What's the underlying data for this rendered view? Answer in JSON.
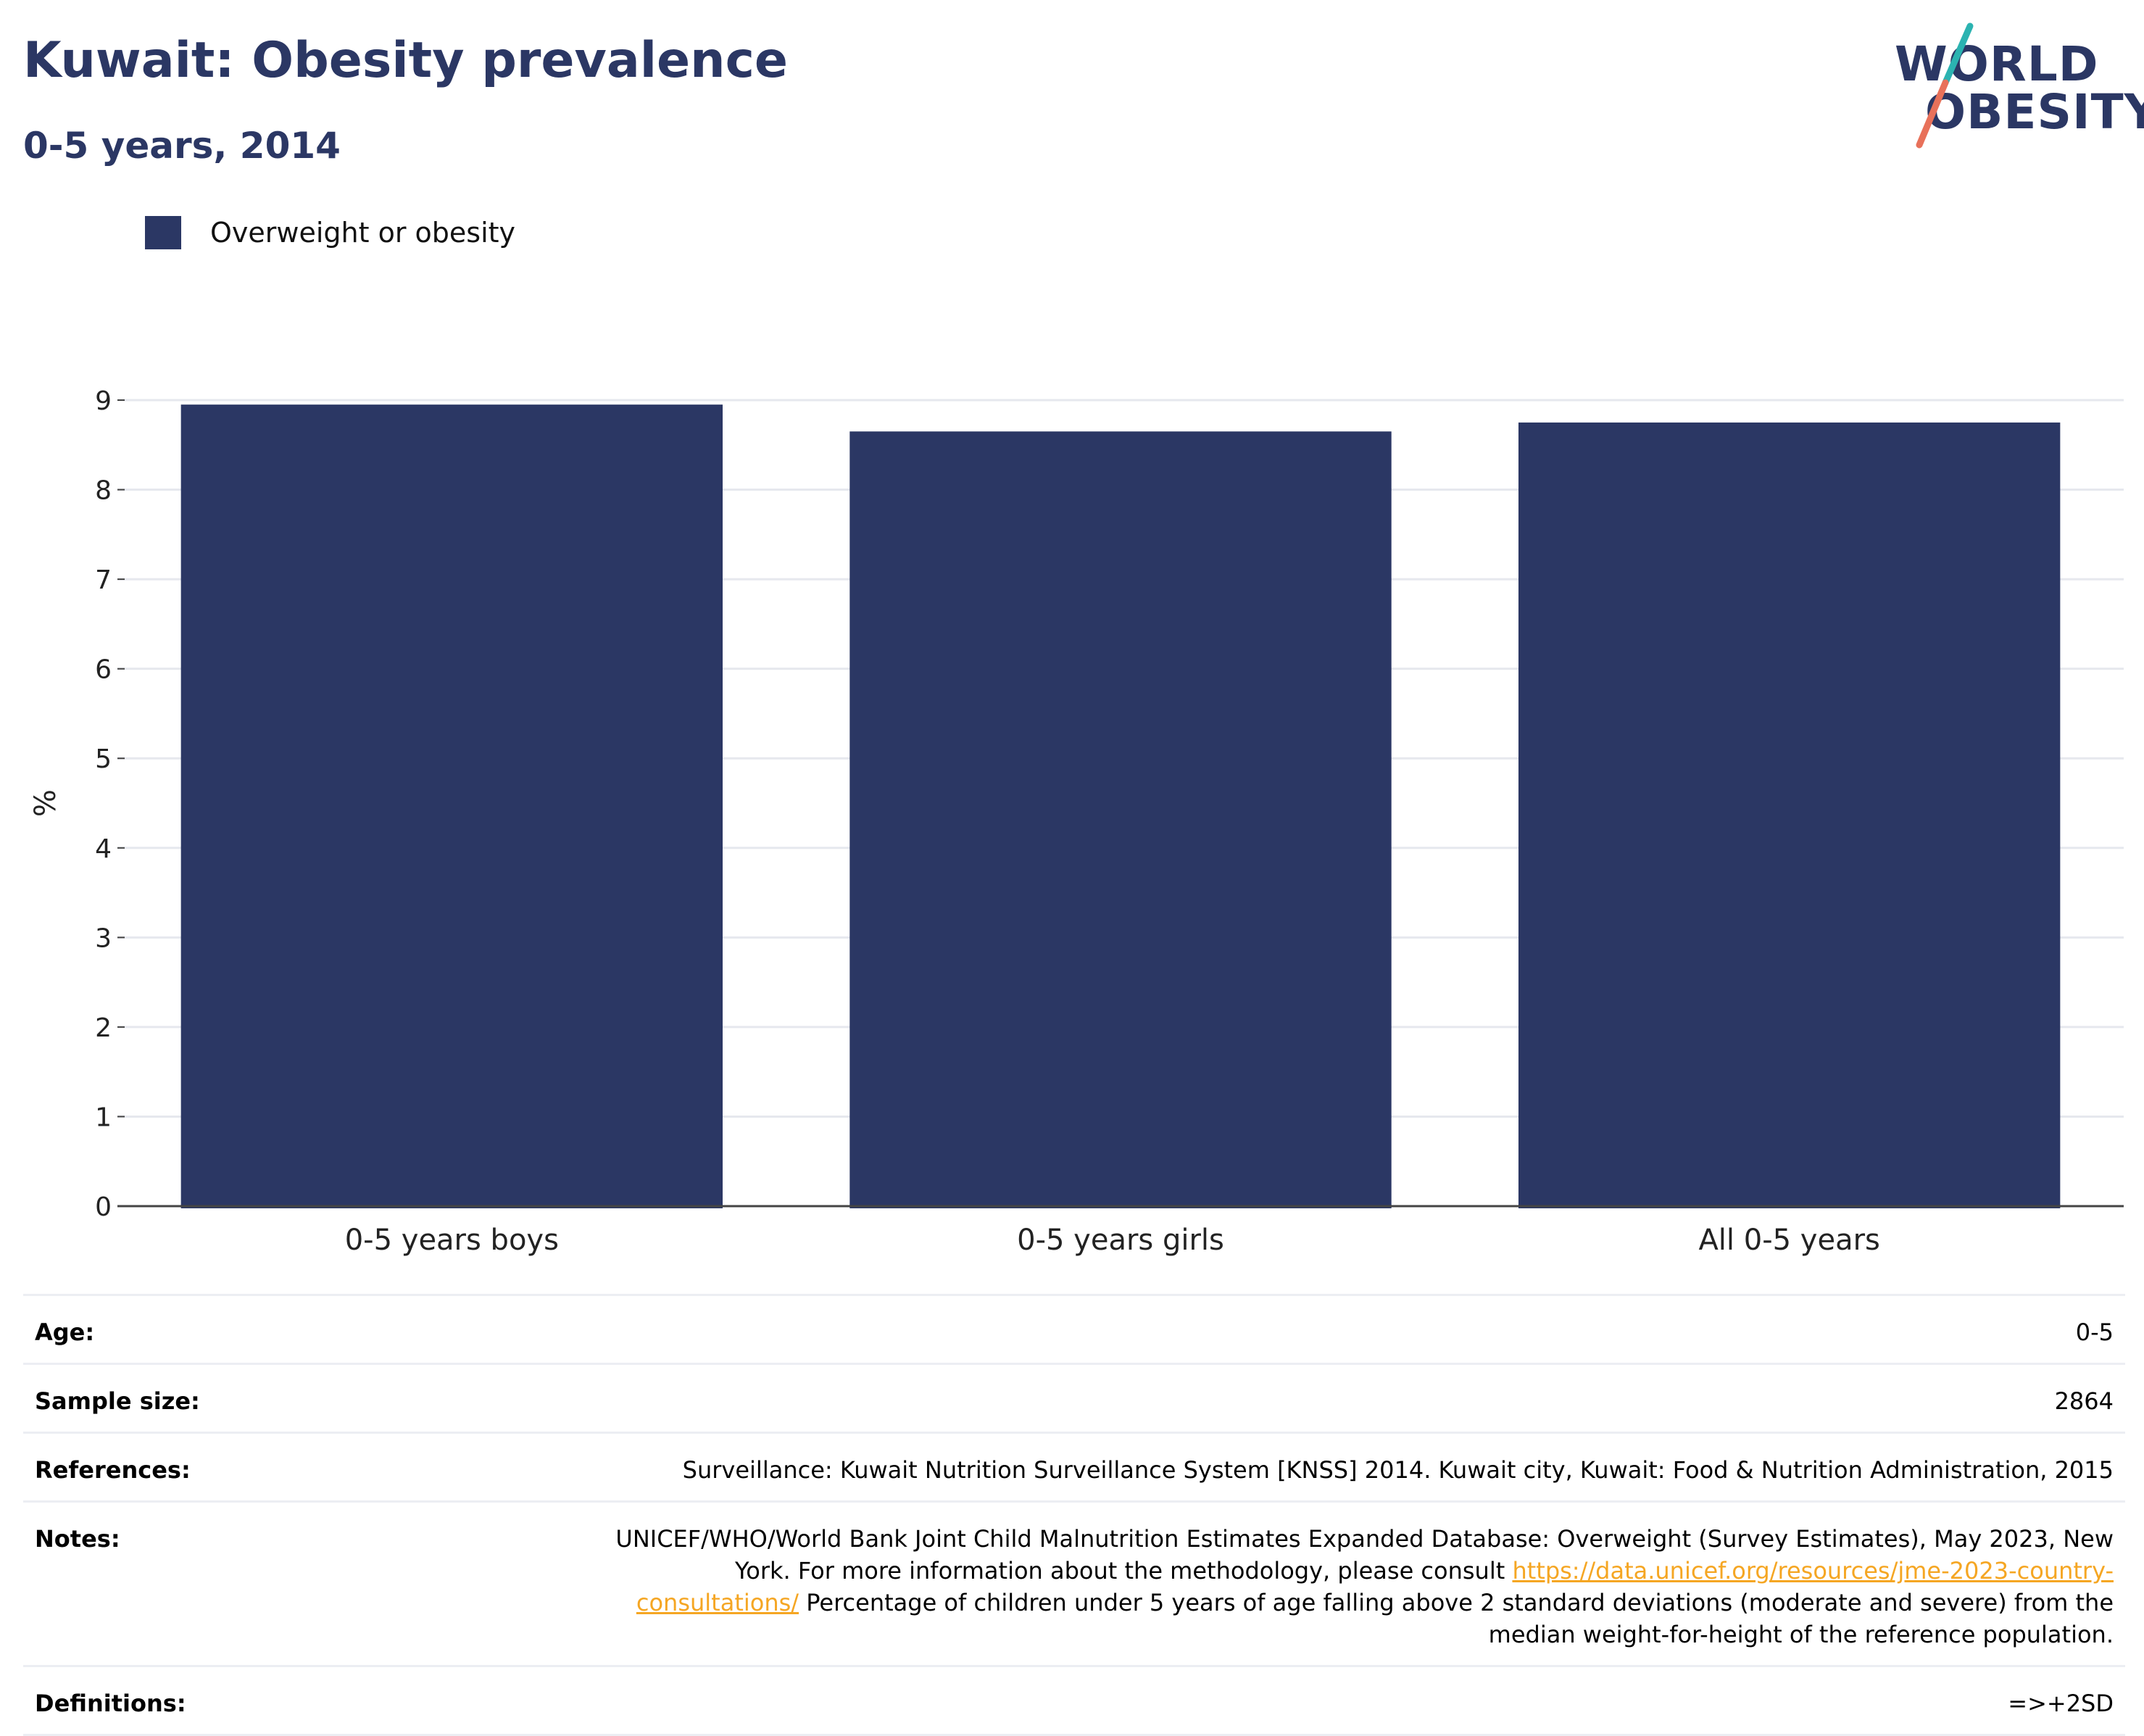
{
  "header": {
    "title": "Kuwait: Obesity prevalence",
    "subtitle": "0-5 years, 2014"
  },
  "logo": {
    "line1": "WORLD",
    "line2": "OBESITY"
  },
  "colors": {
    "bar": "#2b3764",
    "title": "#2b3764",
    "link": "#f5a623",
    "logo_teal": "#2bb3b1",
    "logo_coral": "#e8715a"
  },
  "chart_data": {
    "type": "bar",
    "categories": [
      "0-5 years boys",
      "0-5 years girls",
      "All 0-5 years"
    ],
    "series": [
      {
        "name": "Overweight or obesity",
        "values": [
          8.95,
          8.65,
          8.75
        ]
      }
    ],
    "ylabel": "%",
    "xlabel": "",
    "ylim": [
      0,
      9
    ],
    "yticks": [
      0,
      1,
      2,
      3,
      4,
      5,
      6,
      7,
      8,
      9
    ],
    "grid": true,
    "legend_position": "top-left"
  },
  "info": {
    "age_label": "Age:",
    "age_value": "0-5",
    "sample_label": "Sample size:",
    "sample_value": "2864",
    "references_label": "References:",
    "references_value": "Surveillance: Kuwait Nutrition Surveillance System [KNSS] 2014. Kuwait city, Kuwait: Food & Nutrition Administration, 2015",
    "notes_label": "Notes:",
    "notes_text_1": "UNICEF/WHO/World Bank Joint Child Malnutrition Estimates Expanded Database: Overweight (Survey Estimates), May 2023, New York. For more information about the methodology, please consult ",
    "notes_link": "https://data.unicef.org/resources/jme-2023-country-consultations/",
    "notes_text_2": " Percentage of children under 5 years of age falling above 2 standard deviations (moderate and severe) from the median weight-for-height of the reference population.",
    "definitions_label": "Definitions:",
    "definitions_value": "=>+2SD"
  }
}
